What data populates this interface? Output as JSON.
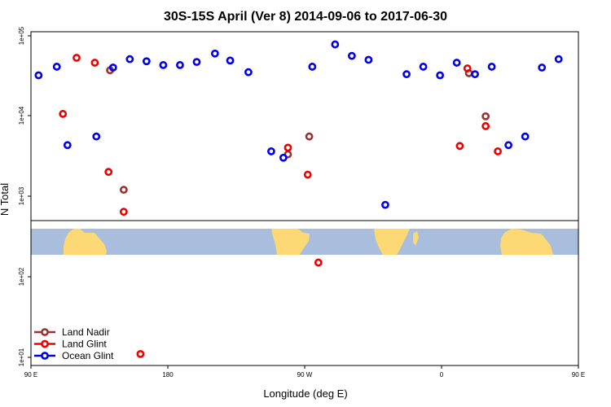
{
  "chart_data": {
    "type": "scatter",
    "title": "30S-15S April (Ver 8)   2014-09-06 to 2017-06-30",
    "xlabel": "Longitude (deg E)",
    "ylabel": "N Total",
    "x_range_deg_east": [
      90,
      450
    ],
    "ylim": [
      10,
      100000
    ],
    "y_scale": "log",
    "x_ticks": [
      {
        "value": 90,
        "label": "90 E"
      },
      {
        "value": 180,
        "label": "180"
      },
      {
        "value": 270,
        "label": "90 W"
      },
      {
        "value": 360,
        "label": "0"
      },
      {
        "value": 450,
        "label": "90 E"
      },
      {
        "value": 540,
        "label": "180"
      }
    ],
    "y_ticks": [
      {
        "value": 10,
        "label": "1e+01"
      },
      {
        "value": 100,
        "label": "1e+02"
      },
      {
        "value": 1000,
        "label": "1e+03"
      },
      {
        "value": 10000,
        "label": "1e+04"
      },
      {
        "value": 100000,
        "label": "1e+05"
      }
    ],
    "legend_position": "bottom-left",
    "map_strip": {
      "ocean_color": "#a8bedc",
      "land_color": "#fcd975"
    },
    "series": [
      {
        "name": "Land Nadir",
        "color": "#993333",
        "points": [
          {
            "x": 142,
            "y": 37000
          },
          {
            "x": 151,
            "y": 1200
          },
          {
            "x": 259,
            "y": 3300
          },
          {
            "x": 273,
            "y": 5500
          },
          {
            "x": 378,
            "y": 34000
          },
          {
            "x": 389,
            "y": 9800
          },
          {
            "x": 502,
            "y": 37000
          },
          {
            "x": 510,
            "y": 1200
          }
        ]
      },
      {
        "name": "Land Glint",
        "color": "#ee0000",
        "points": [
          {
            "x": 111,
            "y": 10500
          },
          {
            "x": 120,
            "y": 53000
          },
          {
            "x": 132,
            "y": 46000
          },
          {
            "x": 141,
            "y": 2000
          },
          {
            "x": 151,
            "y": 640
          },
          {
            "x": 162,
            "y": 11
          },
          {
            "x": 259,
            "y": 4000
          },
          {
            "x": 272,
            "y": 1850
          },
          {
            "x": 279,
            "y": 150
          },
          {
            "x": 372,
            "y": 4200
          },
          {
            "x": 377,
            "y": 39000
          },
          {
            "x": 389,
            "y": 7400
          },
          {
            "x": 397,
            "y": 3600
          },
          {
            "x": 479,
            "y": 10500
          },
          {
            "x": 488,
            "y": 53000
          },
          {
            "x": 500,
            "y": 46000
          },
          {
            "x": 510,
            "y": 2000
          },
          {
            "x": 519,
            "y": 640
          },
          {
            "x": 530,
            "y": 11
          }
        ]
      },
      {
        "name": "Ocean Glint",
        "color": "#0000ee",
        "points": [
          {
            "x": 95,
            "y": 32000
          },
          {
            "x": 107,
            "y": 41000
          },
          {
            "x": 114,
            "y": 4300
          },
          {
            "x": 133,
            "y": 5500
          },
          {
            "x": 144,
            "y": 40000
          },
          {
            "x": 155,
            "y": 51000
          },
          {
            "x": 166,
            "y": 48000
          },
          {
            "x": 177,
            "y": 43000
          },
          {
            "x": 188,
            "y": 43000
          },
          {
            "x": 199,
            "y": 47000
          },
          {
            "x": 211,
            "y": 60000
          },
          {
            "x": 221,
            "y": 49000
          },
          {
            "x": 233,
            "y": 35000
          },
          {
            "x": 248,
            "y": 3600
          },
          {
            "x": 256,
            "y": 3000
          },
          {
            "x": 275,
            "y": 41000
          },
          {
            "x": 290,
            "y": 78000
          },
          {
            "x": 301,
            "y": 56000
          },
          {
            "x": 312,
            "y": 50000
          },
          {
            "x": 323,
            "y": 780
          },
          {
            "x": 337,
            "y": 33000
          },
          {
            "x": 348,
            "y": 41000
          },
          {
            "x": 359,
            "y": 32000
          },
          {
            "x": 370,
            "y": 46000
          },
          {
            "x": 382,
            "y": 33000
          },
          {
            "x": 393,
            "y": 41000
          },
          {
            "x": 404,
            "y": 4300
          },
          {
            "x": 415,
            "y": 5500
          },
          {
            "x": 426,
            "y": 40000
          },
          {
            "x": 437,
            "y": 51000
          }
        ]
      }
    ]
  }
}
